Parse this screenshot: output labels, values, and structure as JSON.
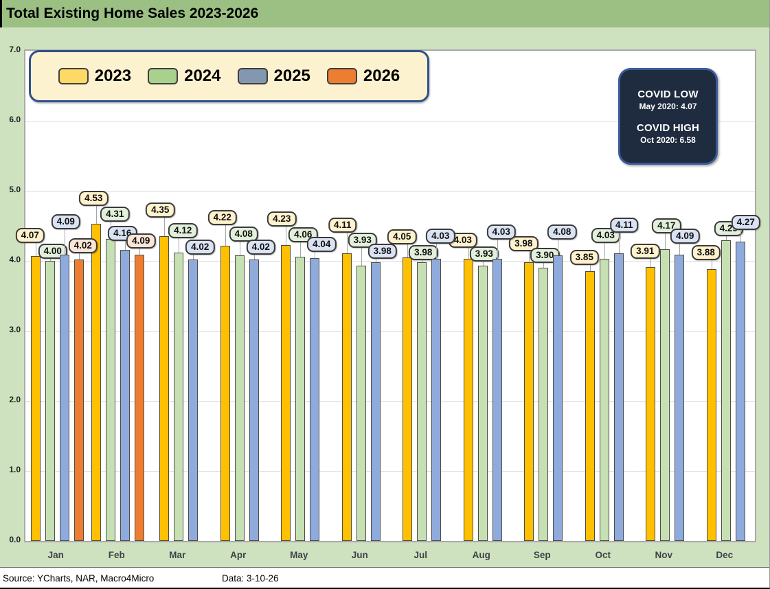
{
  "title": "Total Existing Home Sales 2023-2026",
  "legend": {
    "items": [
      {
        "label": "2023",
        "swatch_color": "#FFD966"
      },
      {
        "label": "2024",
        "swatch_color": "#A9D18E"
      },
      {
        "label": "2025",
        "swatch_color": "#8497B0"
      },
      {
        "label": "2026",
        "swatch_color": "#ED7D31"
      }
    ]
  },
  "covid_box": {
    "low_title": "COVID LOW",
    "low_value": "May 2020: 4.07",
    "high_title": "COVID HIGH",
    "high_value": "Oct 2020: 6.58"
  },
  "footer": {
    "source": "Source: YCharts, NAR, Macro4Micro",
    "data_date": "Data: 3-10-26"
  },
  "colors": {
    "title_bar": "#9CC083",
    "page_background": "#CFE2C0",
    "plot_background": "#FFFFFF",
    "legend_fill": "#FCF2D0",
    "legend_border": "#30508C",
    "covid_box_fill": "#1F2B3E",
    "bar_2023": "#FFC000",
    "bar_2024": "#C6E0B4",
    "bar_2025": "#8FAADC",
    "bar_2026": "#ED7D31"
  },
  "chart_data": {
    "type": "bar",
    "title": "Total Existing Home Sales 2023-2026",
    "xlabel": "",
    "ylabel": "",
    "ylim": [
      0,
      7
    ],
    "ytick_labels": [
      "0.0",
      "1.0",
      "2.0",
      "3.0",
      "4.0",
      "5.0",
      "6.0",
      "7.0"
    ],
    "grid": true,
    "legend_position": "top-left",
    "categories": [
      "Jan",
      "Feb",
      "Mar",
      "Apr",
      "May",
      "Jun",
      "Jul",
      "Aug",
      "Sep",
      "Oct",
      "Nov",
      "Dec"
    ],
    "series": [
      {
        "name": "2023",
        "color": "#FFC000",
        "label_fill": "#FFF2CC",
        "values": [
          4.07,
          4.53,
          4.35,
          4.22,
          4.23,
          4.11,
          4.05,
          4.03,
          3.98,
          3.85,
          3.91,
          3.88
        ],
        "display": [
          "4.07",
          "4.53",
          "4.35",
          "4.22",
          "4.23",
          "4.11",
          "4.05",
          "4.03",
          "3.98",
          "3.85",
          "3.91",
          "3.88"
        ]
      },
      {
        "name": "2024",
        "color": "#C6E0B4",
        "label_fill": "#E2EFDA",
        "values": [
          4.0,
          4.31,
          4.12,
          4.08,
          4.06,
          3.93,
          3.98,
          3.93,
          3.9,
          4.03,
          4.17,
          4.29
        ],
        "display": [
          "4.00",
          "4.31",
          "4.12",
          "4.08",
          "4.06",
          "3.93",
          "3.98",
          "3.93",
          "3.90",
          "4.03",
          "4.17",
          "4.29"
        ]
      },
      {
        "name": "2025",
        "color": "#8FAADC",
        "label_fill": "#DAE3F3",
        "values": [
          4.09,
          4.16,
          4.02,
          4.02,
          4.04,
          3.98,
          4.03,
          4.03,
          4.08,
          4.11,
          4.09,
          4.27
        ],
        "display": [
          "4.09",
          "4.16",
          "4.02",
          "4.02",
          "4.04",
          "3.98",
          "4.03",
          "4.03",
          "4.08",
          "4.11",
          "4.09",
          "4.27"
        ]
      },
      {
        "name": "2026",
        "color": "#ED7D31",
        "label_fill": "#FBE5D6",
        "values": [
          4.02,
          4.09,
          null,
          null,
          null,
          null,
          null,
          null,
          null,
          null,
          null,
          null
        ],
        "display": [
          "4.02",
          "4.09",
          "",
          "",
          "",
          "",
          "",
          "",
          "",
          "",
          "",
          ""
        ]
      }
    ],
    "annotations": [
      "COVID LOW May 2020: 4.07",
      "COVID HIGH Oct 2020: 6.58"
    ]
  }
}
